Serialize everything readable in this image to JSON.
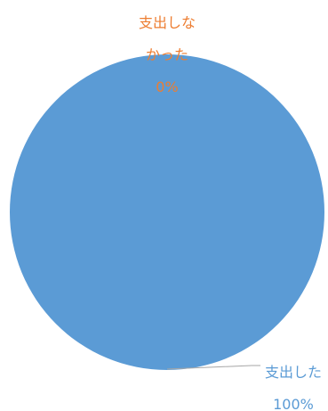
{
  "chart_data": {
    "type": "pie",
    "slices": [
      {
        "name": "支出した",
        "label_lines": [
          "支出した",
          "100%"
        ],
        "value": 100,
        "color": "#5B9BD5"
      },
      {
        "name": "支出しなかった",
        "label_lines": [
          "支出しな",
          "かった",
          "0%"
        ],
        "value": 0,
        "color": "#ED7D31"
      }
    ],
    "leader_line_color": "#A6A6A6"
  }
}
